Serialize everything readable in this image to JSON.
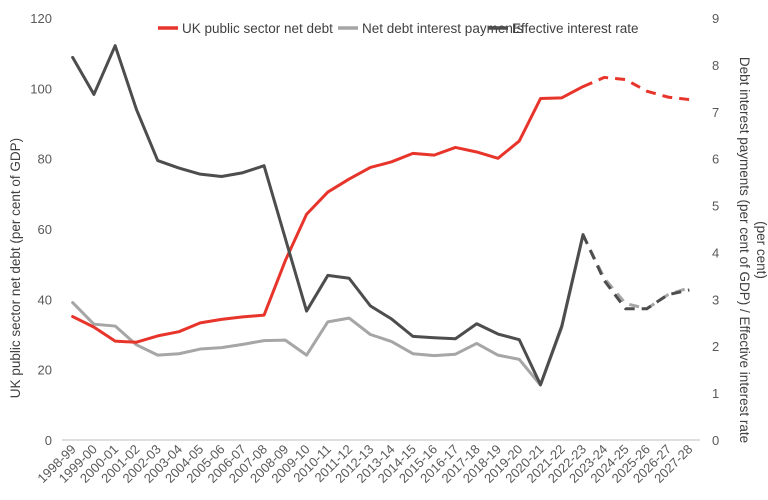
{
  "chart_data": {
    "type": "line",
    "categories": [
      "1998-99",
      "1999-00",
      "2000-01",
      "2001-02",
      "2002-03",
      "2003-04",
      "2004-05",
      "2005-06",
      "2006-07",
      "2007-08",
      "2008-09",
      "2009-10",
      "2010-11",
      "2011-12",
      "2012-13",
      "2013-14",
      "2014-15",
      "2015-16",
      "2016-17",
      "2017-18",
      "2018-19",
      "2019-20",
      "2020-21",
      "2021-22",
      "2022-23",
      "2023-24",
      "2024-25",
      "2025-26",
      "2026-27",
      "2027-28"
    ],
    "forecast_start": "2022-23",
    "ylabel": "UK public sector net debt (per cent of GDP)",
    "y2label_line1": "Debt interest payments (per cent of GDP) / Effective interest rate",
    "y2label_line2": "(per cent)",
    "ylim": [
      0,
      120
    ],
    "y2lim": [
      0,
      9
    ],
    "yticks": [
      0,
      20,
      40,
      60,
      80,
      100,
      120
    ],
    "y2ticks": [
      0,
      1,
      2,
      3,
      4,
      5,
      6,
      7,
      8,
      9
    ],
    "legend_position": "top",
    "series": [
      {
        "name": "UK public sector net debt",
        "axis": "left",
        "color": "#e8352b",
        "values": [
          35.1,
          32.1,
          28.1,
          27.8,
          29.6,
          30.8,
          33.3,
          34.3,
          35.0,
          35.5,
          51.0,
          64.2,
          70.5,
          74.2,
          77.5,
          79.1,
          81.5,
          81.0,
          83.2,
          81.9,
          80.1,
          85.0,
          97.1,
          97.3,
          100.5,
          103.1,
          102.5,
          99.2,
          97.5,
          96.8
        ]
      },
      {
        "name": "Net debt interest payments",
        "axis": "right",
        "color": "#a6a6a6",
        "values": [
          2.93,
          2.47,
          2.43,
          2.03,
          1.81,
          1.84,
          1.94,
          1.97,
          2.04,
          2.12,
          2.13,
          1.81,
          2.52,
          2.6,
          2.25,
          2.1,
          1.84,
          1.8,
          1.83,
          2.06,
          1.81,
          1.72,
          1.17,
          2.4,
          4.37,
          3.45,
          2.91,
          2.8,
          3.1,
          3.25
        ]
      },
      {
        "name": "Effective interest rate",
        "axis": "right",
        "color": "#4d4d4d",
        "values": [
          8.16,
          7.37,
          8.41,
          7.05,
          5.96,
          5.8,
          5.67,
          5.62,
          5.7,
          5.85,
          4.3,
          2.75,
          3.51,
          3.45,
          2.86,
          2.58,
          2.21,
          2.18,
          2.16,
          2.48,
          2.26,
          2.14,
          1.18,
          2.43,
          4.38,
          3.4,
          2.8,
          2.8,
          3.1,
          3.2
        ]
      }
    ]
  }
}
